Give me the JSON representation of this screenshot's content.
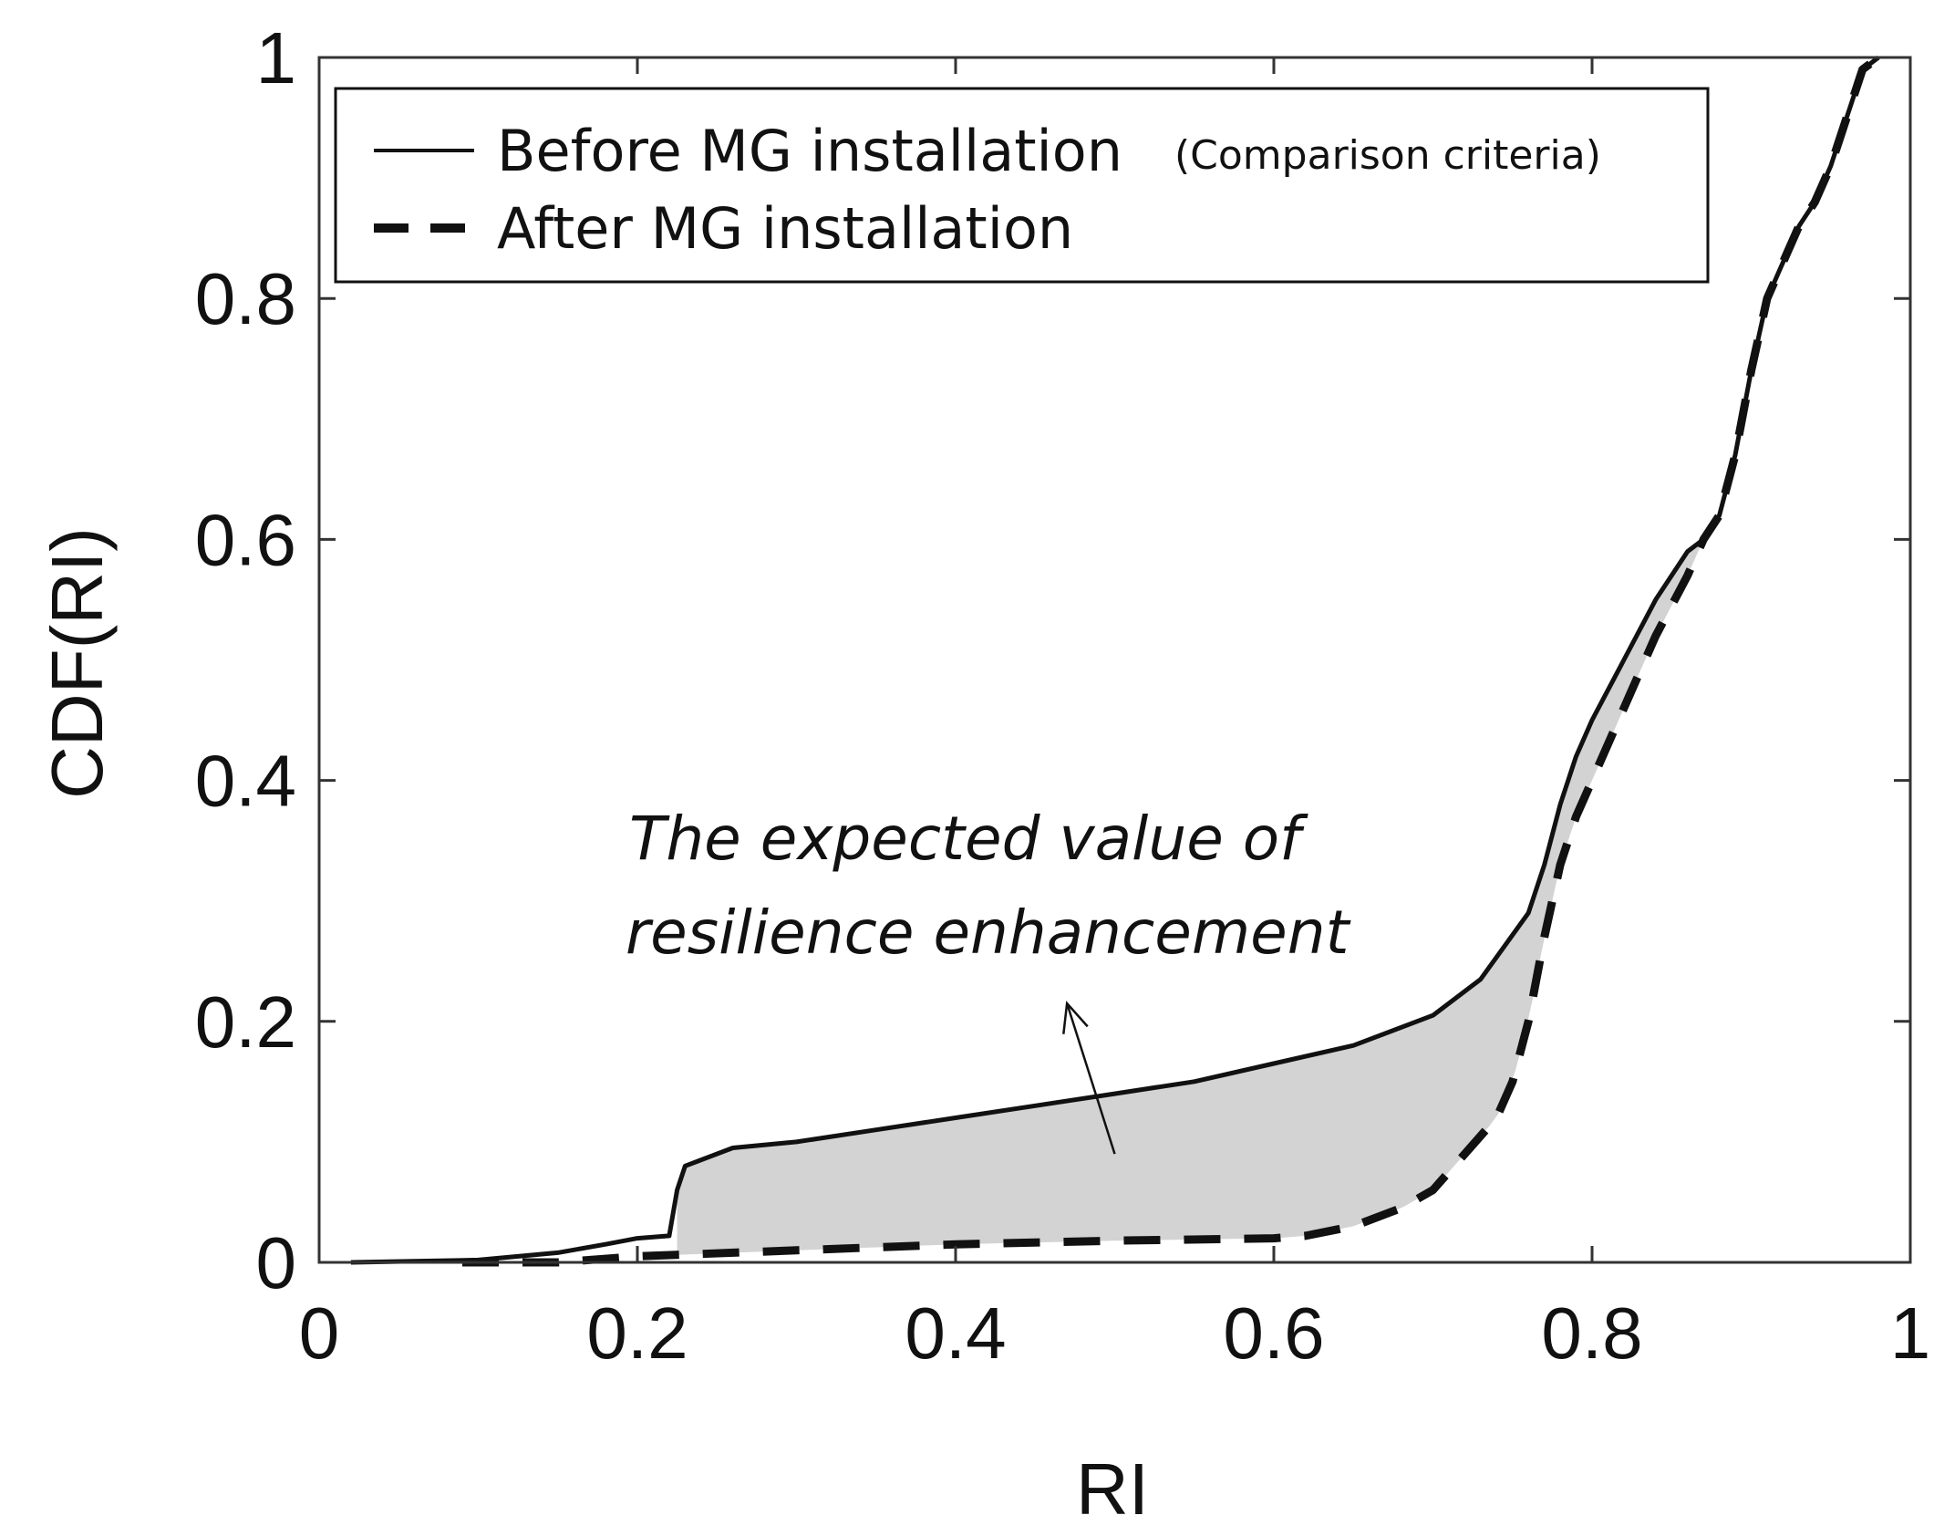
{
  "chart_data": {
    "type": "line",
    "title": "",
    "xlabel": "RI",
    "ylabel": "CDF(RI)",
    "xlim": [
      0,
      1
    ],
    "ylim": [
      0,
      1
    ],
    "xticks": [
      0,
      0.2,
      0.4,
      0.6,
      0.8,
      1
    ],
    "yticks": [
      0,
      0.2,
      0.4,
      0.6,
      0.8,
      1
    ],
    "xtick_labels": [
      "0",
      "0.2",
      "0.4",
      "0.6",
      "0.8",
      "1"
    ],
    "ytick_labels": [
      "0",
      "0.2",
      "0.4",
      "0.6",
      "0.8",
      "1"
    ],
    "grid": false,
    "legend_position": "top-left",
    "series": [
      {
        "name": "Before MG installation",
        "note": "(Comparison criteria)",
        "style": "solid",
        "color": "#111111",
        "x": [
          0.02,
          0.1,
          0.15,
          0.18,
          0.2,
          0.22,
          0.225,
          0.23,
          0.26,
          0.3,
          0.35,
          0.4,
          0.45,
          0.5,
          0.55,
          0.6,
          0.65,
          0.7,
          0.73,
          0.76,
          0.77,
          0.78,
          0.79,
          0.8,
          0.82,
          0.84,
          0.86,
          0.87,
          0.88,
          0.89,
          0.9,
          0.91,
          0.92,
          0.93,
          0.94,
          0.95,
          0.96,
          0.97,
          0.98
        ],
        "y": [
          0.0,
          0.002,
          0.008,
          0.015,
          0.02,
          0.022,
          0.06,
          0.08,
          0.095,
          0.1,
          0.11,
          0.12,
          0.13,
          0.14,
          0.15,
          0.165,
          0.18,
          0.205,
          0.235,
          0.29,
          0.33,
          0.38,
          0.42,
          0.45,
          0.5,
          0.55,
          0.59,
          0.6,
          0.62,
          0.67,
          0.74,
          0.8,
          0.83,
          0.86,
          0.88,
          0.91,
          0.95,
          0.99,
          1.0
        ]
      },
      {
        "name": "After MG installation",
        "note": "",
        "style": "dashed",
        "color": "#111111",
        "x": [
          0.09,
          0.15,
          0.2,
          0.3,
          0.4,
          0.5,
          0.6,
          0.62,
          0.65,
          0.68,
          0.7,
          0.72,
          0.74,
          0.75,
          0.76,
          0.77,
          0.78,
          0.79,
          0.8,
          0.82,
          0.84,
          0.86,
          0.87,
          0.88,
          0.89,
          0.9,
          0.91,
          0.92,
          0.93,
          0.94,
          0.95,
          0.96,
          0.97,
          0.98
        ],
        "y": [
          0.0,
          0.0,
          0.005,
          0.01,
          0.015,
          0.018,
          0.02,
          0.022,
          0.03,
          0.045,
          0.06,
          0.09,
          0.12,
          0.15,
          0.2,
          0.27,
          0.33,
          0.37,
          0.4,
          0.46,
          0.52,
          0.57,
          0.6,
          0.62,
          0.67,
          0.74,
          0.8,
          0.83,
          0.86,
          0.88,
          0.91,
          0.95,
          0.99,
          1.0
        ]
      }
    ],
    "shaded_region": {
      "between": [
        "Before MG installation",
        "After MG installation"
      ],
      "x_range": [
        0.225,
        0.87
      ],
      "color": "#d3d3d3"
    },
    "annotations": [
      {
        "lines": [
          "The expected value of",
          "resilience enhancement"
        ],
        "arrow_tail": [
          0.5,
          0.09
        ],
        "arrow_head": [
          0.47,
          0.215
        ]
      }
    ]
  }
}
